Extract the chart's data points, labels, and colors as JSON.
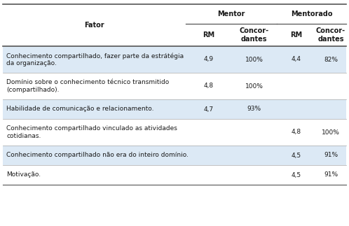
{
  "col_header_top": [
    "Mentor",
    "Mentorado"
  ],
  "col_header_bot": [
    "Fator",
    "RM",
    "Concor-\ndantes",
    "RM",
    "Concor-\ndantes"
  ],
  "rows": [
    {
      "fator": "Conhecimento compartilhado, fazer parte da estrátégia\nda organização.",
      "mentor_rm": "4,9",
      "mentor_conc": "100%",
      "mentee_rm": "4,4",
      "mentee_conc": "82%",
      "shaded": true
    },
    {
      "fator": "Domínio sobre o conhecimento técnico transmitido\n(compartilhado).",
      "mentor_rm": "4,8",
      "mentor_conc": "100%",
      "mentee_rm": "",
      "mentee_conc": "",
      "shaded": false
    },
    {
      "fator": "Habilidade de comunicação e relacionamento.",
      "mentor_rm": "4,7",
      "mentor_conc": "93%",
      "mentee_rm": "",
      "mentee_conc": "",
      "shaded": true
    },
    {
      "fator": "Conhecimento compartilhado vinculado as atividades\ncotidianas.",
      "mentor_rm": "",
      "mentor_conc": "",
      "mentee_rm": "4,8",
      "mentee_conc": "100%",
      "shaded": false
    },
    {
      "fator": "Conhecimento compartilhado não era do inteiro domínio.",
      "mentor_rm": "",
      "mentor_conc": "",
      "mentee_rm": "4,5",
      "mentee_conc": "91%",
      "shaded": true
    },
    {
      "fator": "Motivação.",
      "mentor_rm": "",
      "mentor_conc": "",
      "mentee_rm": "4,5",
      "mentee_conc": "91%",
      "shaded": false
    }
  ],
  "shaded_color": "#dce9f5",
  "white_color": "#ffffff",
  "text_color": "#1a1a1a",
  "border_color": "#aaaaaa",
  "header_line_color": "#555555",
  "font_size": 6.5,
  "header_font_size": 7.0
}
